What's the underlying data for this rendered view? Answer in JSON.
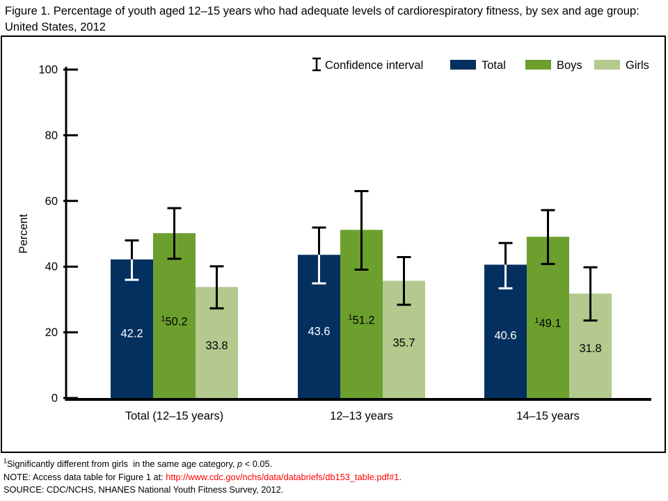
{
  "page": {
    "title": "Figure 1. Percentage of youth aged 12–15 years who had adequate levels of cardiorespiratory fitness, by sex and age group: United States, 2012"
  },
  "chart_data": {
    "type": "bar",
    "title": "Figure 1. Percentage of youth aged 12–15 years who had adequate levels of cardiorespiratory fitness, by sex and age group: United States, 2012",
    "xlabel": "",
    "ylabel": "Percent",
    "ylim": [
      0,
      100
    ],
    "yticks": [
      0,
      20,
      40,
      60,
      80,
      100
    ],
    "grid": false,
    "legend_position": "top-right",
    "ci_legend_label": "Confidence interval",
    "significance_marker": "1",
    "categories": [
      "Total (12–15 years)",
      "12–13 years",
      "14–15 years"
    ],
    "series": [
      {
        "name": "Total",
        "color": "#03305f",
        "label_color": "#ffffff",
        "ci_inner_color": "#ffffff",
        "values": [
          42.2,
          43.6,
          40.6
        ],
        "ci_low": [
          36.0,
          34.9,
          33.4
        ],
        "ci_high": [
          48.0,
          51.9,
          47.2
        ],
        "significant": [
          false,
          false,
          false
        ]
      },
      {
        "name": "Boys",
        "color": "#6d9f2f",
        "label_color": "#000000",
        "ci_inner_color": "#000000",
        "values": [
          50.2,
          51.2,
          49.1
        ],
        "ci_low": [
          42.4,
          39.1,
          40.8
        ],
        "ci_high": [
          57.8,
          63.0,
          57.2
        ],
        "significant": [
          true,
          true,
          true
        ]
      },
      {
        "name": "Girls",
        "color": "#b3c98d",
        "label_color": "#000000",
        "ci_inner_color": "#000000",
        "values": [
          33.8,
          35.7,
          31.8
        ],
        "ci_low": [
          27.3,
          28.4,
          23.6
        ],
        "ci_high": [
          40.1,
          42.9,
          39.8
        ],
        "significant": [
          false,
          false,
          false
        ]
      }
    ]
  },
  "footnotes": {
    "sig": {
      "marker": "1",
      "text": "Significantly different from girls  in the same age category, ",
      "italic": "p",
      "rest": " < 0.05."
    },
    "note": {
      "prefix": "NOTE: Access data table for Figure 1 at: ",
      "link": "http://www.cdc.gov/nchs/data/databriefs/db153_table.pdf#1",
      "suffix": ".",
      "link_color": "#ff0000"
    },
    "source": "SOURCE: CDC/NCHS, NHANES National Youth Fitness Survey, 2012."
  }
}
